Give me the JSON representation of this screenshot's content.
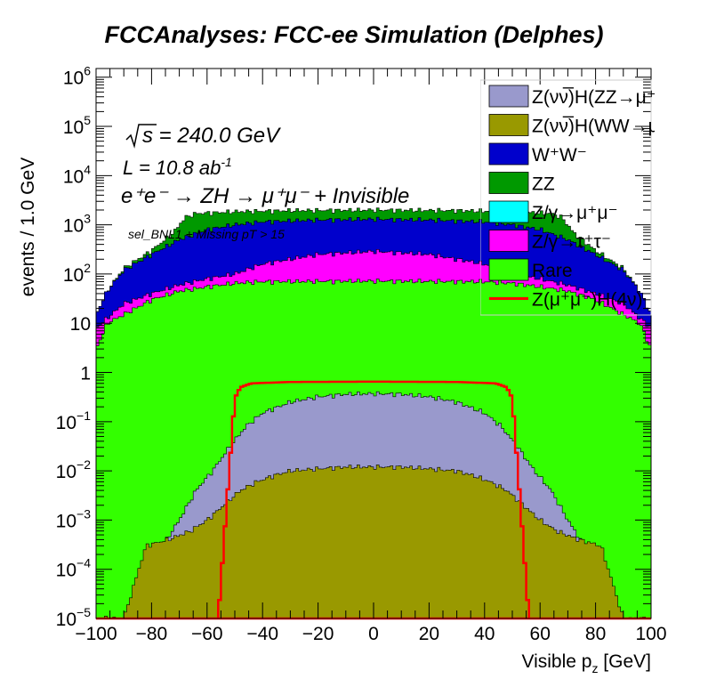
{
  "chart_data": {
    "type": "area",
    "title": "FCCAnalyses: FCC-ee Simulation (Delphes)",
    "xlabel": "Visible p_z [GeV]",
    "ylabel": "events / 1.0 GeV",
    "xlim": [
      -100,
      100
    ],
    "ylim": [
      1e-05,
      1500000.0
    ],
    "yscale": "log",
    "x_ticks": [
      "−100",
      "−80",
      "−60",
      "−40",
      "−20",
      "0",
      "20",
      "40",
      "60",
      "80",
      "100"
    ],
    "y_ticks": [
      {
        "base": "10",
        "exp": "6"
      },
      {
        "base": "10",
        "exp": "5"
      },
      {
        "base": "10",
        "exp": "4"
      },
      {
        "base": "10",
        "exp": "3"
      },
      {
        "base": "10",
        "exp": "2"
      },
      {
        "base": "10",
        "exp": ""
      },
      {
        "base": "1",
        "exp": ""
      },
      {
        "base": "10",
        "exp": "−1"
      },
      {
        "base": "10",
        "exp": "−2"
      },
      {
        "base": "10",
        "exp": "−3"
      },
      {
        "base": "10",
        "exp": "−4"
      },
      {
        "base": "10",
        "exp": "−5"
      }
    ],
    "annotations": {
      "sqrts": "s = 240.0 GeV",
      "lumi": "L = 10.8 ab",
      "lumi_exp": "-1",
      "process": "e⁺e⁻ → ZH → μ⁺μ⁻ + Invisible",
      "selection": "sel_BNL1 + Missing pT > 15"
    },
    "stack_order": "Rare, Z/γ→τ⁺τ⁻, Z/γ→μ⁺μ⁻, ZZ, W⁺W⁻ (top)",
    "series": [
      {
        "name": "Z(νν̅)H(ZZ→μ⁺μ⁻ν⁺ν⁻)",
        "color": "#9999cc",
        "kind": "overlay-fill",
        "points": [
          [
            -88,
            1e-05
          ],
          [
            -82,
            0.0001
          ],
          [
            -76,
            0.0003
          ],
          [
            -70,
            0.001
          ],
          [
            -64,
            0.004
          ],
          [
            -58,
            0.01
          ],
          [
            -52,
            0.03
          ],
          [
            -46,
            0.08
          ],
          [
            -40,
            0.15
          ],
          [
            -30,
            0.25
          ],
          [
            -20,
            0.32
          ],
          [
            -10,
            0.36
          ],
          [
            0,
            0.37
          ],
          [
            10,
            0.36
          ],
          [
            20,
            0.32
          ],
          [
            30,
            0.25
          ],
          [
            40,
            0.15
          ],
          [
            46,
            0.08
          ],
          [
            52,
            0.03
          ],
          [
            58,
            0.01
          ],
          [
            64,
            0.004
          ],
          [
            70,
            0.001
          ],
          [
            76,
            0.0003
          ],
          [
            82,
            0.0001
          ],
          [
            88,
            1e-05
          ]
        ]
      },
      {
        "name": "Z(νν̅)H(WW→μ⁺νμ⁻ν)",
        "color": "#999900",
        "kind": "overlay-fill",
        "points": [
          [
            -90,
            1e-05
          ],
          [
            -82,
            0.0003
          ],
          [
            -74,
            0.0004
          ],
          [
            -66,
            0.0006
          ],
          [
            -60,
            0.001
          ],
          [
            -54,
            0.002
          ],
          [
            -48,
            0.004
          ],
          [
            -42,
            0.006
          ],
          [
            -36,
            0.008
          ],
          [
            -30,
            0.01
          ],
          [
            -20,
            0.011
          ],
          [
            -10,
            0.012
          ],
          [
            0,
            0.012
          ],
          [
            10,
            0.012
          ],
          [
            20,
            0.011
          ],
          [
            30,
            0.01
          ],
          [
            36,
            0.008
          ],
          [
            42,
            0.006
          ],
          [
            48,
            0.004
          ],
          [
            54,
            0.002
          ],
          [
            60,
            0.001
          ],
          [
            66,
            0.0006
          ],
          [
            74,
            0.0004
          ],
          [
            82,
            0.0003
          ],
          [
            90,
            1e-05
          ]
        ]
      },
      {
        "name": "W⁺W⁻",
        "color": "#0000cc",
        "kind": "stack-top",
        "points": [
          [
            -100,
            15
          ],
          [
            -96,
            45
          ],
          [
            -90,
            120
          ],
          [
            -80,
            250
          ],
          [
            -70,
            500
          ],
          [
            -60,
            800
          ],
          [
            -50,
            1000
          ],
          [
            -40,
            1150
          ],
          [
            -20,
            1250
          ],
          [
            0,
            1300
          ],
          [
            20,
            1250
          ],
          [
            40,
            1150
          ],
          [
            50,
            1000
          ],
          [
            60,
            800
          ],
          [
            70,
            500
          ],
          [
            80,
            250
          ],
          [
            90,
            120
          ],
          [
            96,
            45
          ],
          [
            100,
            15
          ]
        ]
      },
      {
        "name": "ZZ",
        "color": "#009900",
        "kind": "stack-top",
        "points": [
          [
            -100,
            15
          ],
          [
            -96,
            45
          ],
          [
            -90,
            130
          ],
          [
            -80,
            300
          ],
          [
            -72,
            700
          ],
          [
            -68,
            1400
          ],
          [
            -64,
            1700
          ],
          [
            -50,
            1850
          ],
          [
            -30,
            1950
          ],
          [
            0,
            2000
          ],
          [
            30,
            1950
          ],
          [
            50,
            1850
          ],
          [
            64,
            1700
          ],
          [
            68,
            1400
          ],
          [
            72,
            700
          ],
          [
            80,
            300
          ],
          [
            90,
            130
          ],
          [
            96,
            45
          ],
          [
            100,
            15
          ]
        ]
      },
      {
        "name": "Z/γ→μ⁺μ⁻",
        "color": "#00ffff",
        "kind": "stack-top",
        "points": [
          [
            -100,
            8
          ],
          [
            -90,
            25
          ],
          [
            -80,
            40
          ],
          [
            -70,
            60
          ],
          [
            -60,
            80
          ],
          [
            -50,
            100
          ],
          [
            -40,
            160
          ],
          [
            -20,
            250
          ],
          [
            0,
            290
          ],
          [
            20,
            250
          ],
          [
            40,
            160
          ],
          [
            50,
            100
          ],
          [
            60,
            80
          ],
          [
            70,
            60
          ],
          [
            80,
            40
          ],
          [
            90,
            25
          ],
          [
            100,
            8
          ]
        ]
      },
      {
        "name": "Z/γ→τ⁺τ⁻",
        "color": "#ff00ff",
        "kind": "stack-top",
        "points": [
          [
            -100,
            8
          ],
          [
            -90,
            25
          ],
          [
            -80,
            40
          ],
          [
            -70,
            60
          ],
          [
            -60,
            80
          ],
          [
            -50,
            100
          ],
          [
            -40,
            160
          ],
          [
            -20,
            250
          ],
          [
            0,
            290
          ],
          [
            20,
            250
          ],
          [
            40,
            160
          ],
          [
            50,
            100
          ],
          [
            60,
            80
          ],
          [
            70,
            60
          ],
          [
            80,
            40
          ],
          [
            90,
            25
          ],
          [
            100,
            8
          ]
        ]
      },
      {
        "name": "Rare",
        "color": "#33ff00",
        "kind": "stack-top",
        "points": [
          [
            -100,
            3
          ],
          [
            -96,
            10
          ],
          [
            -90,
            15
          ],
          [
            -80,
            30
          ],
          [
            -70,
            45
          ],
          [
            -60,
            55
          ],
          [
            -50,
            65
          ],
          [
            -40,
            70
          ],
          [
            0,
            72
          ],
          [
            40,
            70
          ],
          [
            50,
            65
          ],
          [
            60,
            55
          ],
          [
            70,
            45
          ],
          [
            80,
            30
          ],
          [
            90,
            15
          ],
          [
            96,
            10
          ],
          [
            100,
            3
          ]
        ]
      },
      {
        "name": "Z(μ⁺μ⁻)H(4ν)",
        "color": "#ff0000",
        "kind": "line",
        "points": [
          [
            -56,
            1e-05
          ],
          [
            -52,
            0.01
          ],
          [
            -50,
            0.3
          ],
          [
            -48,
            0.5
          ],
          [
            -44,
            0.6
          ],
          [
            -30,
            0.64
          ],
          [
            0,
            0.65
          ],
          [
            30,
            0.64
          ],
          [
            44,
            0.6
          ],
          [
            48,
            0.5
          ],
          [
            50,
            0.3
          ],
          [
            52,
            0.01
          ],
          [
            56,
            1e-05
          ]
        ]
      }
    ]
  }
}
